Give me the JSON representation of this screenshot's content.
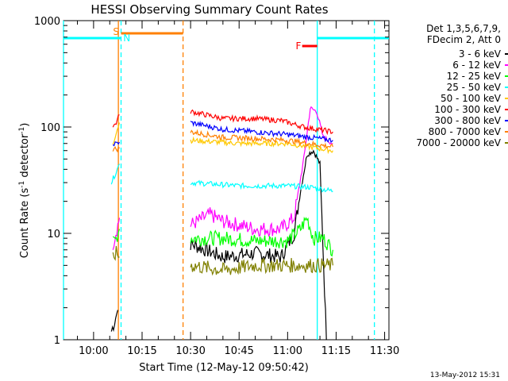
{
  "chart_data": {
    "type": "line",
    "title": "HESSI Observing Summary Count Rates",
    "xlabel": "Start Time (12-May-12 09:50:42)",
    "ylabel_main": "Count Rate (s",
    "ylabel_sup1": "-1",
    "ylabel_mid": " detector",
    "ylabel_sup2": "-1",
    "ylabel_end": ")",
    "y_scale": "log",
    "ylim": [
      1,
      1000
    ],
    "xlim": [
      "09:50:42",
      "11:31:20"
    ],
    "x_ticks": [
      "10:00",
      "10:15",
      "10:30",
      "10:45",
      "11:00",
      "11:15",
      "11:30"
    ],
    "y_ticks": [
      "1",
      "10",
      "100",
      "1000"
    ],
    "legend_header": [
      "Det 1,3,5,6,7,9,",
      "FDecim 2, Att 0"
    ],
    "series": [
      {
        "name": "3 - 6 keV",
        "color": "#000000",
        "seg1": [
          [
            "10:05:30",
            1.2
          ],
          [
            "10:06:30",
            1.5
          ],
          [
            "10:07:30",
            1.9
          ]
        ],
        "seg2": [
          [
            "10:30:00",
            8
          ],
          [
            "10:40:00",
            6
          ],
          [
            "10:50:00",
            6.5
          ],
          [
            "10:58:00",
            6
          ],
          [
            "11:02:00",
            10
          ],
          [
            "11:04:00",
            25
          ],
          [
            "11:06:00",
            55
          ],
          [
            "11:08:00",
            60
          ],
          [
            "11:10:00",
            45
          ],
          [
            "11:12:00",
            1
          ]
        ]
      },
      {
        "name": "6 - 12 keV",
        "color": "#ff00ff",
        "seg1": [
          [
            "10:06:00",
            8
          ],
          [
            "10:07:30",
            12
          ],
          [
            "10:08:00",
            14
          ]
        ],
        "seg2": [
          [
            "10:30:00",
            12
          ],
          [
            "10:36:00",
            15
          ],
          [
            "10:40:00",
            13
          ],
          [
            "10:50:00",
            11
          ],
          [
            "10:58:00",
            11
          ],
          [
            "11:02:00",
            14
          ],
          [
            "11:05:00",
            50
          ],
          [
            "11:07:00",
            150
          ],
          [
            "11:09:00",
            140
          ],
          [
            "11:11:00",
            80
          ],
          [
            "11:14:00",
            70
          ]
        ]
      },
      {
        "name": "12 - 25 keV",
        "color": "#00ff00",
        "seg1": [
          [
            "10:06:00",
            8
          ],
          [
            "10:07:00",
            9
          ],
          [
            "10:08:00",
            11
          ]
        ],
        "seg2": [
          [
            "10:30:00",
            9
          ],
          [
            "10:40:00",
            9
          ],
          [
            "10:50:00",
            8.5
          ],
          [
            "11:00:00",
            8.5
          ],
          [
            "11:04:00",
            11
          ],
          [
            "11:06:00",
            14
          ],
          [
            "11:08:00",
            9
          ],
          [
            "11:11:00",
            9
          ],
          [
            "11:14:00",
            7
          ]
        ]
      },
      {
        "name": "25 - 50 keV",
        "color": "#00ffff",
        "seg1": [
          [
            "10:05:30",
            30
          ],
          [
            "10:07:00",
            38
          ],
          [
            "10:08:00",
            45
          ]
        ],
        "seg2": [
          [
            "10:30:00",
            30
          ],
          [
            "10:45:00",
            28
          ],
          [
            "11:00:00",
            28
          ],
          [
            "11:08:00",
            27
          ],
          [
            "11:14:00",
            25
          ]
        ]
      },
      {
        "name": "50 - 100 keV",
        "color": "#ffc800",
        "seg1": [
          [
            "10:06:00",
            70
          ],
          [
            "10:07:00",
            90
          ],
          [
            "10:08:00",
            110
          ]
        ],
        "seg2": [
          [
            "10:30:00",
            75
          ],
          [
            "10:45:00",
            70
          ],
          [
            "11:00:00",
            70
          ],
          [
            "11:14:00",
            60
          ]
        ]
      },
      {
        "name": "100 - 300 keV",
        "color": "#ff0000",
        "seg1": [
          [
            "10:06:00",
            100
          ],
          [
            "10:07:00",
            110
          ],
          [
            "10:08:00",
            130
          ]
        ],
        "seg2": [
          [
            "10:30:00",
            140
          ],
          [
            "10:40:00",
            120
          ],
          [
            "10:50:00",
            120
          ],
          [
            "10:58:00",
            115
          ],
          [
            "11:05:00",
            100
          ],
          [
            "11:14:00",
            90
          ]
        ]
      },
      {
        "name": "300 - 800 keV",
        "color": "#0000ff",
        "seg1": [
          [
            "10:06:00",
            68
          ],
          [
            "10:07:00",
            70
          ],
          [
            "10:08:00",
            72
          ]
        ],
        "seg2": [
          [
            "10:30:00",
            110
          ],
          [
            "10:40:00",
            95
          ],
          [
            "10:50:00",
            90
          ],
          [
            "11:00:00",
            85
          ],
          [
            "11:14:00",
            75
          ]
        ]
      },
      {
        "name": "800 - 7000 keV",
        "color": "#ff8000",
        "seg1": [
          [
            "10:06:00",
            62
          ],
          [
            "10:07:00",
            62
          ],
          [
            "10:08:00",
            63
          ]
        ],
        "seg2": [
          [
            "10:30:00",
            90
          ],
          [
            "10:40:00",
            80
          ],
          [
            "10:50:00",
            78
          ],
          [
            "11:00:00",
            75
          ],
          [
            "11:14:00",
            65
          ]
        ]
      },
      {
        "name": "7000 - 20000 keV",
        "color": "#808000",
        "seg1": [
          [
            "10:06:00",
            6
          ],
          [
            "10:07:00",
            6.5
          ],
          [
            "10:08:00",
            6
          ]
        ],
        "seg2": [
          [
            "10:30:00",
            5
          ],
          [
            "10:40:00",
            4.5
          ],
          [
            "10:50:00",
            5
          ],
          [
            "11:00:00",
            5
          ],
          [
            "11:10:00",
            5
          ],
          [
            "11:14:00",
            5
          ]
        ]
      }
    ],
    "annotations": {
      "S": {
        "label": "S",
        "color": "#ff8000"
      },
      "N": {
        "label": "N",
        "color": "#00ffff"
      },
      "F": {
        "label": "F",
        "color": "#ff0000"
      }
    },
    "footer_date": "13-May-2012 15:31"
  }
}
